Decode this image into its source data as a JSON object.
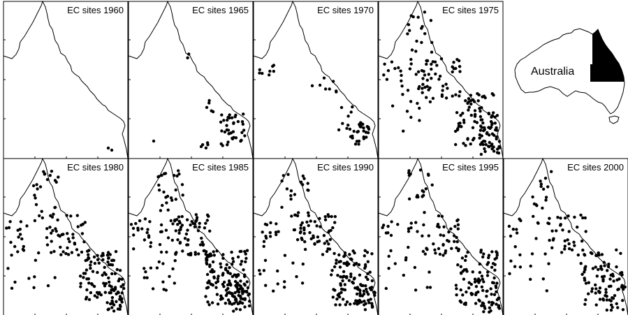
{
  "panels": [
    {
      "title": "EC sites 1960",
      "year": 1960
    },
    {
      "title": "EC sites 1965",
      "year": 1965
    },
    {
      "title": "EC sites 1970",
      "year": 1970
    },
    {
      "title": "EC sites 1975",
      "year": 1975
    },
    {
      "title": "EC sites 1980",
      "year": 1980
    },
    {
      "title": "EC sites 1985",
      "year": 1985
    },
    {
      "title": "EC sites 1990",
      "year": 1990
    },
    {
      "title": "EC sites 1995",
      "year": 1995
    },
    {
      "title": "EC sites 2000",
      "year": 2000
    }
  ],
  "inset": {
    "label": "Australia"
  },
  "colors": {
    "background": "#ffffff",
    "ink": "#000000"
  }
}
